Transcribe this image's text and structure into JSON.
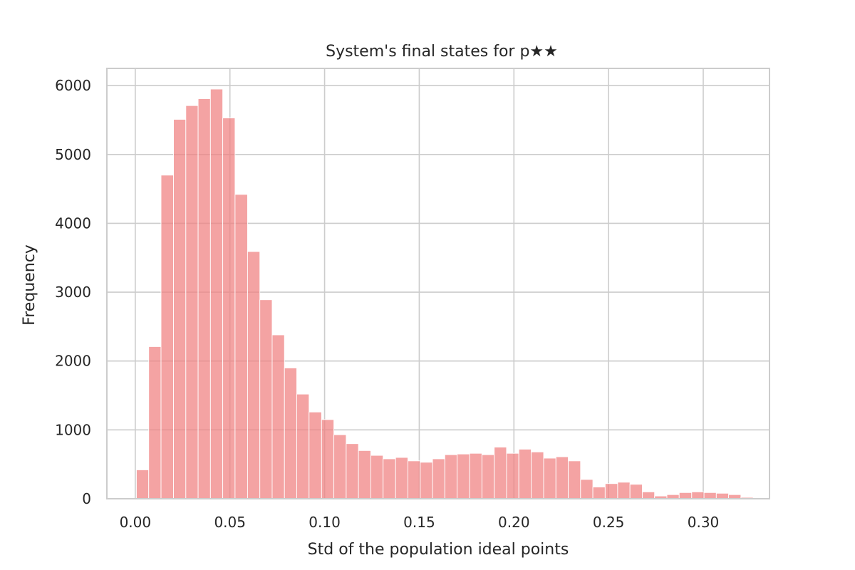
{
  "chart_data": {
    "type": "bar",
    "title": "System's final states for p★★",
    "xlabel": "Std of the population ideal points",
    "ylabel": "Frequency",
    "xlim": [
      -0.015,
      0.335
    ],
    "ylim": [
      0,
      6250
    ],
    "grid": true,
    "bar_color": "#f08080",
    "x_ticks": [
      0.0,
      0.05,
      0.1,
      0.15,
      0.2,
      0.25,
      0.3
    ],
    "x_tick_labels": [
      "0.00",
      "0.05",
      "0.10",
      "0.15",
      "0.20",
      "0.25",
      "0.30"
    ],
    "y_ticks": [
      0,
      1000,
      2000,
      3000,
      4000,
      5000,
      6000
    ],
    "y_tick_labels": [
      "0",
      "1000",
      "2000",
      "3000",
      "4000",
      "5000",
      "6000"
    ],
    "bin_edges": [
      0.0006,
      0.0071,
      0.0136,
      0.0202,
      0.0267,
      0.0332,
      0.0397,
      0.0462,
      0.0527,
      0.0593,
      0.0658,
      0.0723,
      0.0788,
      0.0853,
      0.0918,
      0.0984,
      0.1049,
      0.1114,
      0.1179,
      0.1244,
      0.1309,
      0.1375,
      0.144,
      0.1505,
      0.157,
      0.1635,
      0.17,
      0.1766,
      0.1831,
      0.1896,
      0.1961,
      0.2026,
      0.2091,
      0.2157,
      0.2222,
      0.2287,
      0.2352,
      0.2417,
      0.2482,
      0.2548,
      0.2613,
      0.2678,
      0.2743,
      0.2808,
      0.2873,
      0.2939,
      0.3004,
      0.3069,
      0.3134,
      0.3199,
      0.3264
    ],
    "values": [
      420,
      2210,
      4700,
      5510,
      5710,
      5810,
      5950,
      5530,
      4420,
      3590,
      2890,
      2380,
      1900,
      1520,
      1260,
      1150,
      930,
      800,
      700,
      630,
      580,
      600,
      550,
      530,
      580,
      640,
      650,
      660,
      640,
      750,
      660,
      720,
      680,
      590,
      610,
      550,
      280,
      170,
      220,
      240,
      210,
      100,
      40,
      60,
      90,
      100,
      90,
      80,
      60,
      20,
      10
    ]
  }
}
